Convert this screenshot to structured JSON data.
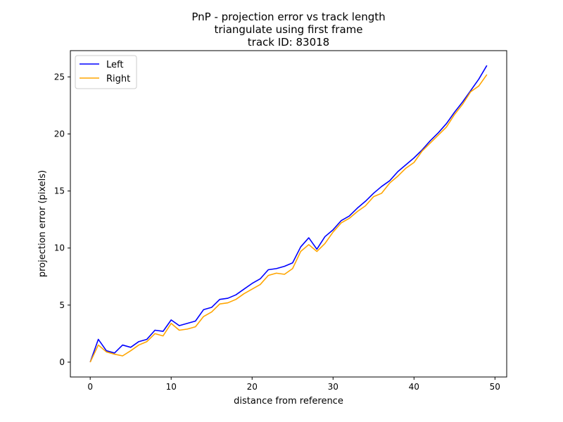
{
  "chart_data": {
    "type": "line",
    "title": [
      "PnP - projection error vs track length",
      "triangulate using first frame",
      "track ID: 83018"
    ],
    "xlabel": "distance from reference",
    "ylabel": "projection error (pixels)",
    "xlim": [
      -2.45,
      51.45
    ],
    "ylim": [
      -1.3,
      27.3
    ],
    "xticks": [
      0,
      10,
      20,
      30,
      40,
      50
    ],
    "yticks": [
      0,
      5,
      10,
      15,
      20,
      25
    ],
    "grid": false,
    "legend": {
      "position": "top-left"
    },
    "x": [
      0,
      1,
      2,
      3,
      4,
      5,
      6,
      7,
      8,
      9,
      10,
      11,
      12,
      13,
      14,
      15,
      16,
      17,
      18,
      19,
      20,
      21,
      22,
      23,
      24,
      25,
      26,
      27,
      28,
      29,
      30,
      31,
      32,
      33,
      34,
      35,
      36,
      37,
      38,
      39,
      40,
      41,
      42,
      43,
      44,
      45,
      46,
      47,
      48,
      49
    ],
    "series": [
      {
        "name": "Left",
        "color": "#0000ff",
        "values": [
          0.0,
          2.0,
          1.0,
          0.8,
          1.5,
          1.3,
          1.8,
          2.0,
          2.8,
          2.7,
          3.7,
          3.2,
          3.4,
          3.6,
          4.6,
          4.8,
          5.5,
          5.6,
          5.9,
          6.4,
          6.9,
          7.3,
          8.1,
          8.2,
          8.4,
          8.7,
          10.1,
          10.9,
          9.9,
          11.0,
          11.6,
          12.4,
          12.8,
          13.5,
          14.1,
          14.8,
          15.4,
          15.9,
          16.7,
          17.3,
          17.9,
          18.6,
          19.4,
          20.1,
          20.9,
          21.9,
          22.8,
          23.8,
          24.8,
          26.0
        ]
      },
      {
        "name": "Right",
        "color": "#ffa500",
        "values": [
          0.0,
          1.5,
          0.9,
          0.7,
          0.55,
          1.0,
          1.5,
          1.8,
          2.5,
          2.3,
          3.4,
          2.8,
          2.9,
          3.1,
          4.0,
          4.4,
          5.1,
          5.2,
          5.5,
          6.0,
          6.4,
          6.8,
          7.6,
          7.8,
          7.7,
          8.2,
          9.7,
          10.3,
          9.7,
          10.4,
          11.4,
          12.2,
          12.6,
          13.2,
          13.7,
          14.5,
          14.8,
          15.7,
          16.3,
          17.0,
          17.5,
          18.5,
          19.2,
          19.9,
          20.6,
          21.7,
          22.6,
          23.7,
          24.2,
          25.2
        ]
      }
    ]
  }
}
